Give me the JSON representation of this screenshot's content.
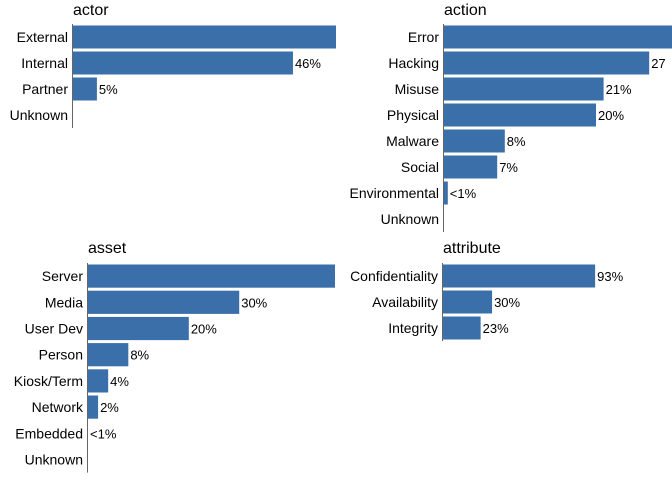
{
  "colors": {
    "bar": "#3A6FAA",
    "axis": "#666666",
    "text": "#000000"
  },
  "chart_data": [
    {
      "type": "bar",
      "orientation": "horizontal",
      "title": "actor",
      "categories": [
        "External",
        "Internal",
        "Partner",
        "Unknown"
      ],
      "values": [
        55,
        46,
        5,
        0
      ],
      "value_labels": [
        "",
        "46%",
        "5%",
        ""
      ],
      "xlim": [
        0,
        55
      ]
    },
    {
      "type": "bar",
      "orientation": "horizontal",
      "title": "action",
      "categories": [
        "Error",
        "Hacking",
        "Misuse",
        "Physical",
        "Malware",
        "Social",
        "Environmental",
        "Unknown"
      ],
      "values": [
        30,
        27,
        21,
        20,
        8,
        7,
        0.5,
        0
      ],
      "value_labels": [
        "",
        "27",
        "21%",
        "20%",
        "8%",
        "7%",
        "<1%",
        ""
      ],
      "xlim": [
        0,
        30
      ]
    },
    {
      "type": "bar",
      "orientation": "horizontal",
      "title": "asset",
      "categories": [
        "Server",
        "Media",
        "User Dev",
        "Person",
        "Kiosk/Term",
        "Network",
        "Embedded",
        "Unknown"
      ],
      "values": [
        49,
        30,
        20,
        8,
        4,
        2,
        0,
        0
      ],
      "value_labels": [
        "",
        "30%",
        "20%",
        "8%",
        "4%",
        "2%",
        "<1%",
        ""
      ],
      "xlim": [
        0,
        49
      ]
    },
    {
      "type": "bar",
      "orientation": "horizontal",
      "title": "attribute",
      "categories": [
        "Confidentiality",
        "Availability",
        "Integrity"
      ],
      "values": [
        93,
        30,
        23
      ],
      "value_labels": [
        "93%",
        "30%",
        "23%"
      ],
      "xlim": [
        0,
        140
      ]
    }
  ]
}
